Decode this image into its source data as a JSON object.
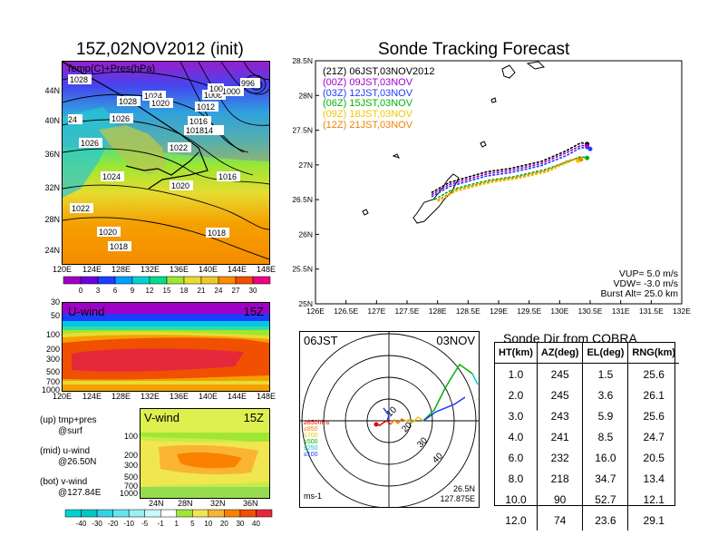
{
  "left_map": {
    "title": "15Z,02NOV2012 (init)",
    "label": "Temp(C)+Pres(hPa)",
    "x_ticks": [
      "120E",
      "124E",
      "128E",
      "132E",
      "136E",
      "140E",
      "144E",
      "148E"
    ],
    "y_ticks": [
      "44N",
      "40N",
      "36N",
      "32N",
      "28N",
      "24N"
    ],
    "isobars": [
      "1028",
      "1028",
      "1024",
      "1020",
      "1026",
      "1026",
      "1024",
      "1022",
      "1016",
      "1012",
      "1008",
      "1004",
      "1000",
      "996",
      "1016",
      "1018",
      "1014",
      "1022",
      "1020",
      "1016",
      "1022",
      "1020",
      "1018",
      "1018",
      "1024"
    ],
    "colorbar": [
      "0",
      "3",
      "6",
      "9",
      "12",
      "15",
      "18",
      "21",
      "24",
      "27",
      "30"
    ],
    "colorbar_colors": [
      "#a000c8",
      "#6e00dc",
      "#1e3cff",
      "#00a0ff",
      "#00d2d2",
      "#00dc8c",
      "#a0e632",
      "#e6dc32",
      "#f0c828",
      "#fa8c00",
      "#f05000",
      "#f00082"
    ]
  },
  "u_wind": {
    "label": "U-wind",
    "time": "15Z",
    "y_ticks": [
      "30",
      "50",
      "100",
      "200",
      "300",
      "500",
      "700",
      "1000"
    ],
    "x_ticks": [
      "120E",
      "124E",
      "128E",
      "132E",
      "136E",
      "140E",
      "144E",
      "148E"
    ]
  },
  "v_wind": {
    "label": "V-wind",
    "time": "15Z",
    "y_ticks": [
      "100",
      "200",
      "300",
      "500",
      "700",
      "1000"
    ],
    "x_ticks": [
      "24N",
      "28N",
      "32N",
      "36N"
    ],
    "colorbar": [
      "-40",
      "-30",
      "-20",
      "-10",
      "-5",
      "-1",
      "1",
      "5",
      "10",
      "20",
      "30",
      "40"
    ],
    "colorbar_colors": [
      "#00d2d2",
      "#00c8c8",
      "#32d2e6",
      "#64e6f0",
      "#96f0f5",
      "#c8fafa",
      "#ffffff",
      "#a0e632",
      "#f0e650",
      "#fab432",
      "#fa8200",
      "#f05000",
      "#e6283c"
    ]
  },
  "legend_notes": [
    {
      "line1": "(up) tmp+pres",
      "line2": "@surf"
    },
    {
      "line1": "(mid) u-wind",
      "line2": "@26.50N"
    },
    {
      "line1": "(bot) v-wind",
      "line2": "@127.84E"
    }
  ],
  "tracking": {
    "title": "Sonde Tracking Forecast",
    "x_ticks": [
      "126E",
      "126.5E",
      "127E",
      "127.5E",
      "128E",
      "128.5E",
      "129E",
      "129.5E",
      "130E",
      "130.5E",
      "131E",
      "131.5E",
      "132E"
    ],
    "y_ticks": [
      "28.5N",
      "28N",
      "27.5N",
      "27N",
      "26.5N",
      "26N",
      "25.5N",
      "25N"
    ],
    "legend": [
      {
        "text": "(21Z)  06JST,03NOV2012",
        "color": "#000000"
      },
      {
        "text": "(00Z)  09JST,03NOV",
        "color": "#a000c8"
      },
      {
        "text": "(03Z)  12JST,03NOV",
        "color": "#1e3cff"
      },
      {
        "text": "(06Z)  15JST,03NOV",
        "color": "#00b400"
      },
      {
        "text": "(09Z)  18JST,03NOV",
        "color": "#f0c800"
      },
      {
        "text": "(12Z)  21JST,03NOV",
        "color": "#f08200"
      }
    ],
    "params": [
      "VUP=  5.0  m/s",
      "VDW= -3.0  m/s",
      "Burst Alt=  25.0  km"
    ]
  },
  "chart_data": {
    "type": "line",
    "title": "Sonde Tracking Forecast",
    "xlim": [
      126,
      132
    ],
    "ylim": [
      25,
      28.5
    ],
    "series": [
      {
        "name": "(21Z) 06JST,03NOV2012",
        "color": "#000000",
        "x": [
          127.9,
          128.2,
          128.6,
          128.8,
          129.2,
          129.7,
          130.1,
          130.35,
          130.45
        ],
        "y": [
          26.6,
          26.75,
          26.85,
          26.9,
          26.95,
          27.05,
          27.2,
          27.32,
          27.3
        ]
      },
      {
        "name": "(00Z) 09JST,03NOV",
        "color": "#a000c8",
        "x": [
          127.9,
          128.2,
          128.6,
          128.8,
          129.2,
          129.7,
          130.1,
          130.35,
          130.45
        ],
        "y": [
          26.57,
          26.72,
          26.82,
          26.87,
          26.92,
          27.02,
          27.17,
          27.28,
          27.27
        ]
      },
      {
        "name": "(03Z) 12JST,03NOV",
        "color": "#1e3cff",
        "x": [
          127.9,
          128.2,
          128.6,
          128.8,
          129.2,
          129.7,
          130.1,
          130.35,
          130.5
        ],
        "y": [
          26.54,
          26.69,
          26.79,
          26.84,
          26.89,
          26.99,
          27.13,
          27.25,
          27.23
        ]
      },
      {
        "name": "(06Z) 15JST,03NOV",
        "color": "#00b400",
        "x": [
          127.95,
          128.25,
          128.65,
          128.85,
          129.25,
          129.75,
          130.15,
          130.35,
          130.45
        ],
        "y": [
          26.5,
          26.65,
          26.74,
          26.78,
          26.83,
          26.93,
          27.05,
          27.12,
          27.1
        ]
      },
      {
        "name": "(09Z) 18JST,03NOV",
        "color": "#f0c800",
        "x": [
          128.0,
          128.3,
          128.7,
          128.9,
          129.3,
          129.8,
          130.1,
          130.25,
          130.3
        ],
        "y": [
          26.47,
          26.62,
          26.71,
          26.75,
          26.8,
          26.9,
          27.02,
          27.08,
          27.06
        ]
      },
      {
        "name": "(12Z) 21JST,03NOV",
        "color": "#f08200",
        "x": [
          128.0,
          128.3,
          128.7,
          128.9,
          129.3,
          129.8,
          130.1,
          130.3,
          130.35
        ],
        "y": [
          26.49,
          26.64,
          26.73,
          26.77,
          26.82,
          26.92,
          27.05,
          27.1,
          27.08
        ]
      }
    ]
  },
  "polar": {
    "time": "06JST",
    "date": "03NOV",
    "unit": "ms-1",
    "position_lat": "26.5N",
    "position_lon": "127.875E",
    "ring_labels": [
      "10",
      "20",
      "30",
      "40"
    ],
    "level_legend": [
      {
        "text": "≥850hPa",
        "color": "#e60000"
      },
      {
        "text": "≤850",
        "color": "#f08200"
      },
      {
        "text": "≤700",
        "color": "#f0c800"
      },
      {
        "text": "≤500",
        "color": "#00b400"
      },
      {
        "text": "≤250",
        "color": "#00c8c8"
      },
      {
        "text": "≤100",
        "color": "#1e3cff"
      }
    ]
  },
  "table": {
    "title": "Sonde Dir from COBRA",
    "headers": [
      "HT(km)",
      "AZ(deg)",
      "EL(deg)",
      "RNG(km)"
    ],
    "rows": [
      [
        "1.0",
        "245",
        "1.5",
        "25.6"
      ],
      [
        "2.0",
        "245",
        "3.6",
        "26.1"
      ],
      [
        "3.0",
        "243",
        "5.9",
        "25.6"
      ],
      [
        "4.0",
        "241",
        "8.5",
        "24.7"
      ],
      [
        "6.0",
        "232",
        "16.0",
        "20.5"
      ],
      [
        "8.0",
        "218",
        "34.7",
        "13.4"
      ],
      [
        "10.0",
        "90",
        "52.7",
        "12.1"
      ],
      [
        "12.0",
        "74",
        "23.6",
        "29.1"
      ]
    ]
  }
}
